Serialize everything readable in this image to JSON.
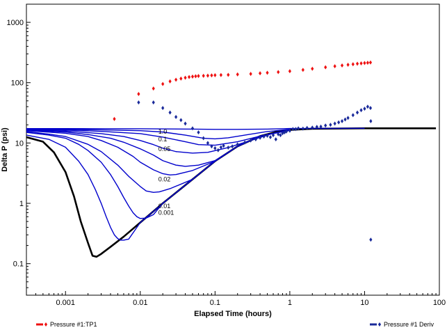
{
  "chart_data": {
    "type": "scatter",
    "title": "",
    "xlabel": "Elapsed Time (hours)",
    "ylabel": "Delta P (psi)",
    "x_scale": "log",
    "y_scale": "log",
    "xlim": [
      0.0003,
      100
    ],
    "ylim": [
      0.03,
      2000
    ],
    "grid": false,
    "x_ticks": [
      "0.001",
      "0.01",
      "0.1",
      "1",
      "10",
      "100"
    ],
    "y_ticks": [
      "0.1",
      "1",
      "10",
      "100",
      "1000"
    ],
    "series": [
      {
        "name": "Pressure #1:TP1",
        "kind": "markers",
        "color": "#ee1111",
        "marker": "diamond",
        "points": [
          [
            0.0045,
            25
          ],
          [
            0.0095,
            65
          ],
          [
            0.015,
            80
          ],
          [
            0.02,
            95
          ],
          [
            0.025,
            105
          ],
          [
            0.03,
            112
          ],
          [
            0.035,
            117
          ],
          [
            0.04,
            121
          ],
          [
            0.045,
            124
          ],
          [
            0.05,
            126
          ],
          [
            0.055,
            128
          ],
          [
            0.06,
            129
          ],
          [
            0.07,
            130
          ],
          [
            0.08,
            131
          ],
          [
            0.09,
            132
          ],
          [
            0.1,
            133
          ],
          [
            0.12,
            134
          ],
          [
            0.15,
            135
          ],
          [
            0.2,
            137
          ],
          [
            0.3,
            140
          ],
          [
            0.4,
            143
          ],
          [
            0.5,
            146
          ],
          [
            0.7,
            150
          ],
          [
            1.0,
            155
          ],
          [
            1.5,
            163
          ],
          [
            2.0,
            170
          ],
          [
            3.0,
            180
          ],
          [
            4.0,
            187
          ],
          [
            5.0,
            193
          ],
          [
            6.0,
            198
          ],
          [
            7.0,
            202
          ],
          [
            8.0,
            206
          ],
          [
            9.0,
            209
          ],
          [
            10.0,
            212
          ],
          [
            11.0,
            214
          ],
          [
            12.0,
            216
          ]
        ]
      },
      {
        "name": "Pressure #1 Deriv",
        "kind": "markers",
        "color": "#1a2a9a",
        "marker": "diamond",
        "points": [
          [
            0.0095,
            47
          ],
          [
            0.015,
            47
          ],
          [
            0.02,
            38
          ],
          [
            0.025,
            32
          ],
          [
            0.03,
            27
          ],
          [
            0.035,
            24
          ],
          [
            0.04,
            21
          ],
          [
            0.05,
            17.5
          ],
          [
            0.06,
            15
          ],
          [
            0.07,
            12
          ],
          [
            0.08,
            10
          ],
          [
            0.09,
            8.8
          ],
          [
            0.1,
            8.2
          ],
          [
            0.11,
            7.6
          ],
          [
            0.12,
            8.5
          ],
          [
            0.13,
            9.0
          ],
          [
            0.15,
            8.4
          ],
          [
            0.17,
            8.8
          ],
          [
            0.2,
            9.5
          ],
          [
            0.25,
            10.2
          ],
          [
            0.3,
            11
          ],
          [
            0.35,
            11.5
          ],
          [
            0.4,
            12.2
          ],
          [
            0.45,
            12.8
          ],
          [
            0.5,
            13.2
          ],
          [
            0.55,
            12.5
          ],
          [
            0.6,
            13.5
          ],
          [
            0.65,
            11.5
          ],
          [
            0.7,
            14
          ],
          [
            0.75,
            13.5
          ],
          [
            0.8,
            14.5
          ],
          [
            0.85,
            15
          ],
          [
            0.9,
            15.5
          ],
          [
            1.0,
            16
          ],
          [
            1.1,
            17
          ],
          [
            1.2,
            17
          ],
          [
            1.3,
            17.5
          ],
          [
            1.5,
            17.3
          ],
          [
            1.7,
            17.8
          ],
          [
            2.0,
            18
          ],
          [
            2.3,
            18.5
          ],
          [
            2.6,
            18.7
          ],
          [
            3.0,
            19.5
          ],
          [
            3.5,
            20
          ],
          [
            4.0,
            21
          ],
          [
            4.5,
            22
          ],
          [
            5.0,
            23
          ],
          [
            5.5,
            24.5
          ],
          [
            6.0,
            26
          ],
          [
            7.0,
            29
          ],
          [
            8.0,
            32
          ],
          [
            9.0,
            35
          ],
          [
            10.0,
            37
          ],
          [
            11.0,
            40
          ],
          [
            12.0,
            38
          ],
          [
            12.1,
            23
          ],
          [
            12.1,
            0.25
          ]
        ]
      },
      {
        "name": "",
        "kind": "line",
        "color": "#000000",
        "points": [
          [
            0.0003,
            12.5
          ],
          [
            0.0005,
            10.5
          ],
          [
            0.0007,
            7
          ],
          [
            0.001,
            3.3
          ],
          [
            0.0013,
            1.3
          ],
          [
            0.0016,
            0.5
          ],
          [
            0.002,
            0.22
          ],
          [
            0.0023,
            0.135
          ],
          [
            0.0026,
            0.13
          ],
          [
            0.003,
            0.145
          ],
          [
            0.004,
            0.19
          ],
          [
            0.006,
            0.28
          ],
          [
            0.01,
            0.48
          ],
          [
            0.02,
            1.0
          ],
          [
            0.05,
            2.5
          ],
          [
            0.1,
            5.0
          ],
          [
            0.2,
            8.8
          ],
          [
            0.4,
            13.0
          ],
          [
            0.7,
            15.6
          ],
          [
            1.0,
            16.5
          ],
          [
            2.0,
            17.2
          ],
          [
            10.0,
            17.5
          ],
          [
            90.0,
            17.5
          ]
        ]
      },
      {
        "name": "",
        "kind": "line",
        "color": "#0000cc",
        "label": "1.0",
        "points": [
          [
            0.0003,
            17.3
          ],
          [
            0.001,
            17.3
          ],
          [
            0.01,
            17.2
          ],
          [
            0.05,
            17.0
          ],
          [
            0.1,
            16.8
          ],
          [
            0.2,
            16.8
          ],
          [
            0.5,
            17.0
          ],
          [
            1.0,
            17.4
          ],
          [
            10.0,
            17.5
          ]
        ]
      },
      {
        "name": "",
        "kind": "line",
        "color": "#0000cc",
        "label": "0.1",
        "points": [
          [
            0.0003,
            17
          ],
          [
            0.001,
            16.8
          ],
          [
            0.003,
            16.5
          ],
          [
            0.01,
            16
          ],
          [
            0.02,
            15.2
          ],
          [
            0.04,
            13.5
          ],
          [
            0.07,
            12.0
          ],
          [
            0.1,
            11.7
          ],
          [
            0.15,
            12.2
          ],
          [
            0.25,
            13.5
          ],
          [
            0.5,
            15.5
          ],
          [
            1.0,
            16.8
          ]
        ]
      },
      {
        "name": "",
        "kind": "line",
        "color": "#0000cc",
        "label": "",
        "points": [
          [
            0.0003,
            16.8
          ],
          [
            0.001,
            16.4
          ],
          [
            0.003,
            15.6
          ],
          [
            0.01,
            14.3
          ],
          [
            0.02,
            12.5
          ],
          [
            0.04,
            10.5
          ],
          [
            0.06,
            9.4
          ],
          [
            0.1,
            9.2
          ],
          [
            0.2,
            10.5
          ],
          [
            0.4,
            13
          ],
          [
            1.0,
            16.2
          ]
        ]
      },
      {
        "name": "",
        "kind": "line",
        "color": "#0000cc",
        "label": "0.05",
        "points": [
          [
            0.0003,
            16.5
          ],
          [
            0.001,
            15.8
          ],
          [
            0.003,
            14.3
          ],
          [
            0.006,
            12.8
          ],
          [
            0.01,
            11.0
          ],
          [
            0.015,
            9.4
          ],
          [
            0.02,
            8.2
          ],
          [
            0.03,
            7.2
          ],
          [
            0.05,
            6.8
          ],
          [
            0.08,
            7.0
          ],
          [
            0.15,
            8.4
          ],
          [
            0.3,
            11
          ],
          [
            0.6,
            14.5
          ],
          [
            1.0,
            16.2
          ]
        ]
      },
      {
        "name": "",
        "kind": "line",
        "color": "#0000cc",
        "label": "",
        "points": [
          [
            0.0003,
            16.3
          ],
          [
            0.001,
            15.2
          ],
          [
            0.002,
            13.8
          ],
          [
            0.004,
            12
          ],
          [
            0.006,
            10.3
          ],
          [
            0.01,
            8
          ],
          [
            0.015,
            6.3
          ],
          [
            0.02,
            5.1
          ],
          [
            0.03,
            4.3
          ],
          [
            0.04,
            4.1
          ],
          [
            0.06,
            4.3
          ],
          [
            0.1,
            5.1
          ],
          [
            0.2,
            8.8
          ],
          [
            0.4,
            13
          ],
          [
            1.0,
            16.3
          ]
        ]
      },
      {
        "name": "",
        "kind": "line",
        "color": "#0000cc",
        "label": "",
        "points": [
          [
            0.0003,
            16
          ],
          [
            0.001,
            14.5
          ],
          [
            0.002,
            12.8
          ],
          [
            0.003,
            11
          ],
          [
            0.005,
            8.5
          ],
          [
            0.008,
            6
          ],
          [
            0.01,
            4.8
          ],
          [
            0.015,
            3.6
          ],
          [
            0.02,
            3.1
          ],
          [
            0.025,
            2.95
          ],
          [
            0.03,
            3.0
          ],
          [
            0.05,
            3.5
          ],
          [
            0.1,
            5.0
          ],
          [
            0.2,
            8.8
          ],
          [
            0.4,
            13
          ],
          [
            1.0,
            16.4
          ]
        ]
      },
      {
        "name": "",
        "kind": "line",
        "color": "#0000cc",
        "label": "0.02",
        "points": [
          [
            0.0003,
            15.5
          ],
          [
            0.0006,
            14
          ],
          [
            0.001,
            12.8
          ],
          [
            0.002,
            9.5
          ],
          [
            0.003,
            7.2
          ],
          [
            0.005,
            4.3
          ],
          [
            0.007,
            2.8
          ],
          [
            0.01,
            1.9
          ],
          [
            0.012,
            1.6
          ],
          [
            0.015,
            1.52
          ],
          [
            0.018,
            1.55
          ],
          [
            0.025,
            1.75
          ],
          [
            0.05,
            2.5
          ],
          [
            0.1,
            5.0
          ],
          [
            0.2,
            8.8
          ],
          [
            0.4,
            13
          ],
          [
            1.0,
            16.4
          ]
        ]
      },
      {
        "name": "",
        "kind": "line",
        "color": "#0000cc",
        "label": "0.01",
        "points": [
          [
            0.0003,
            15
          ],
          [
            0.0006,
            13.5
          ],
          [
            0.001,
            12
          ],
          [
            0.0015,
            9.5
          ],
          [
            0.002,
            7.5
          ],
          [
            0.003,
            4.8
          ],
          [
            0.004,
            3.0
          ],
          [
            0.005,
            1.9
          ],
          [
            0.006,
            1.25
          ],
          [
            0.007,
            0.9
          ],
          [
            0.008,
            0.7
          ],
          [
            0.009,
            0.6
          ],
          [
            0.01,
            0.56
          ],
          [
            0.012,
            0.57
          ],
          [
            0.015,
            0.65
          ],
          [
            0.02,
            1.0
          ],
          [
            0.05,
            2.5
          ],
          [
            0.1,
            5.0
          ],
          [
            0.2,
            8.8
          ],
          [
            0.4,
            13
          ],
          [
            1.0,
            16.5
          ]
        ]
      },
      {
        "name": "",
        "kind": "line",
        "color": "#0000cc",
        "label": "0.001",
        "points": [
          [
            0.0003,
            13.5
          ],
          [
            0.0006,
            11.5
          ],
          [
            0.001,
            8.5
          ],
          [
            0.0015,
            5
          ],
          [
            0.002,
            3.0
          ],
          [
            0.0025,
            1.7
          ],
          [
            0.003,
            1.0
          ],
          [
            0.0035,
            0.6
          ],
          [
            0.004,
            0.4
          ],
          [
            0.0045,
            0.3
          ],
          [
            0.005,
            0.26
          ],
          [
            0.0055,
            0.245
          ],
          [
            0.006,
            0.245
          ],
          [
            0.007,
            0.255
          ],
          [
            0.01,
            0.48
          ],
          [
            0.02,
            1.0
          ],
          [
            0.05,
            2.5
          ],
          [
            0.1,
            5.0
          ],
          [
            0.2,
            8.8
          ],
          [
            0.4,
            13
          ],
          [
            1.0,
            16.5
          ]
        ]
      }
    ],
    "annotations": [
      {
        "text": "1.0",
        "x": 0.016,
        "y": 15.5
      },
      {
        "text": "0.1",
        "x": 0.016,
        "y": 11.5
      },
      {
        "text": "0.05",
        "x": 0.016,
        "y": 8.0
      },
      {
        "text": "0.02",
        "x": 0.016,
        "y": 2.5
      },
      {
        "text": "0.01",
        "x": 0.016,
        "y": 0.9
      },
      {
        "text": "0.001",
        "x": 0.016,
        "y": 0.7
      }
    ]
  }
}
